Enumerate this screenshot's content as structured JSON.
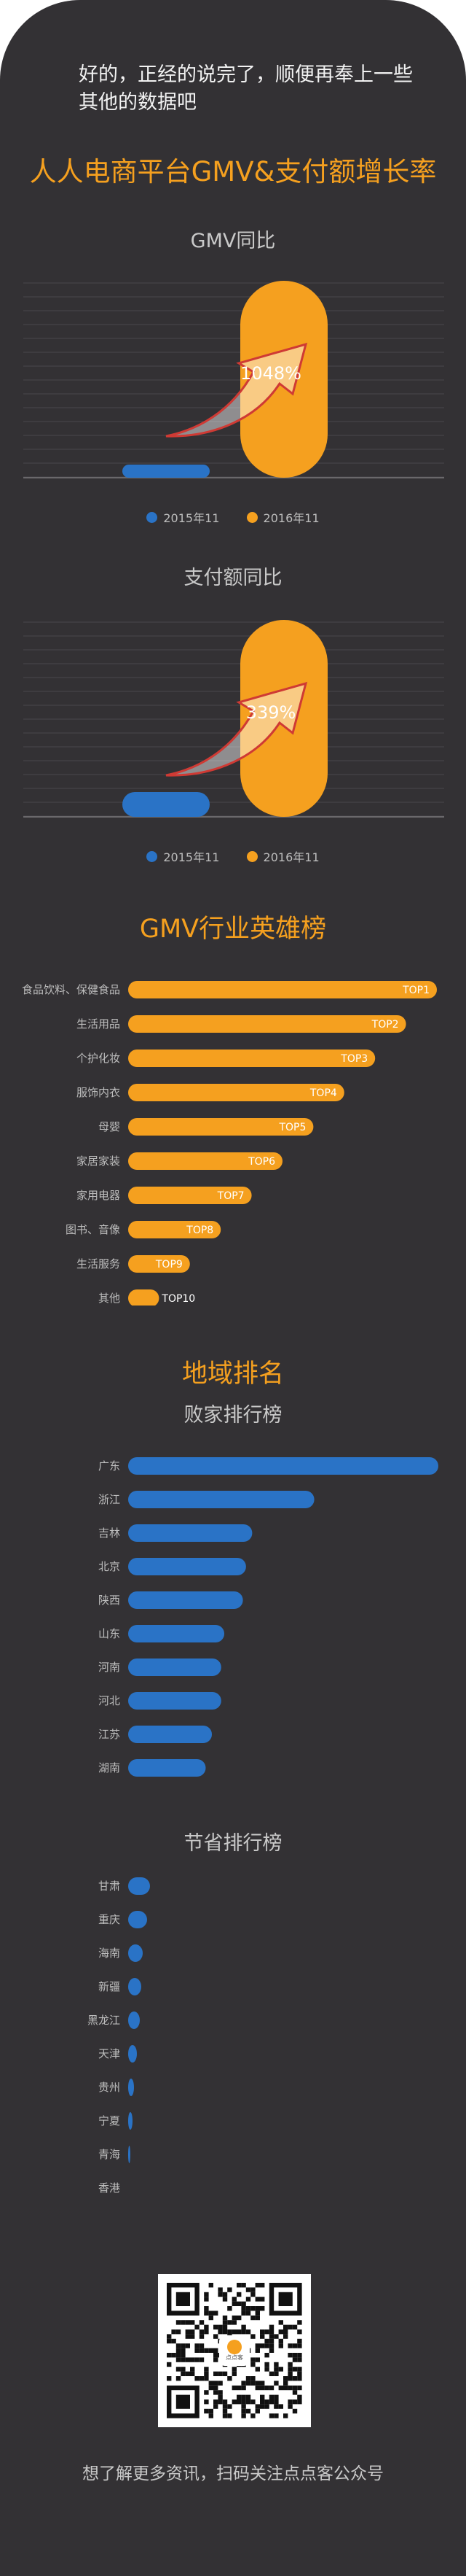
{
  "intro": "好的，正经的说完了，顺便再奉上一些其他的数据吧",
  "main_title": "人人电商平台GMV&支付额增长率",
  "colors": {
    "blue": "#2a73c6",
    "orange": "#f5a01f",
    "arrow": "#cf3a34"
  },
  "chart_data": [
    {
      "type": "bar",
      "title": "GMV同比",
      "series": [
        {
          "name": "2015年11"
        },
        {
          "name": "2016年11"
        }
      ],
      "annotation": "1048%",
      "growth_rate_percent": 1048
    },
    {
      "type": "bar",
      "title": "支付额同比",
      "series": [
        {
          "name": "2015年11"
        },
        {
          "name": "2016年11"
        }
      ],
      "annotation": "339%",
      "growth_rate_percent": 339
    },
    {
      "type": "bar",
      "title": "GMV行业英雄榜",
      "categories": [
        "食品饮料、保健食品",
        "生活用品",
        "个护化妆",
        "服饰内衣",
        "母婴",
        "家居家装",
        "家用电器",
        "图书、音像",
        "生活服务",
        "其他"
      ],
      "labels": [
        "TOP1",
        "TOP2",
        "TOP3",
        "TOP4",
        "TOP5",
        "TOP6",
        "TOP7",
        "TOP8",
        "TOP9",
        "TOP10"
      ],
      "values": [
        100,
        90,
        80,
        70,
        60,
        50,
        40,
        30,
        20,
        10
      ]
    },
    {
      "type": "bar",
      "section": "地域排名",
      "title": "败家排行榜",
      "categories": [
        "广东",
        "浙江",
        "吉林",
        "北京",
        "陕西",
        "山东",
        "河南",
        "河北",
        "江苏",
        "湖南"
      ],
      "values": [
        100,
        60,
        40,
        38,
        37,
        31,
        30,
        30,
        27,
        25
      ]
    },
    {
      "type": "bar",
      "title": "节省排行榜",
      "categories": [
        "甘肃",
        "重庆",
        "海南",
        "新疆",
        "黑龙江",
        "天津",
        "贵州",
        "宁夏",
        "青海",
        "香港"
      ],
      "values": [
        7.5,
        6.5,
        5,
        4.5,
        4,
        3,
        2,
        1.5,
        0.5,
        0
      ]
    }
  ],
  "footer": "想了解更多资讯，扫码关注点点客公众号",
  "qr_logo_text": "点点客"
}
